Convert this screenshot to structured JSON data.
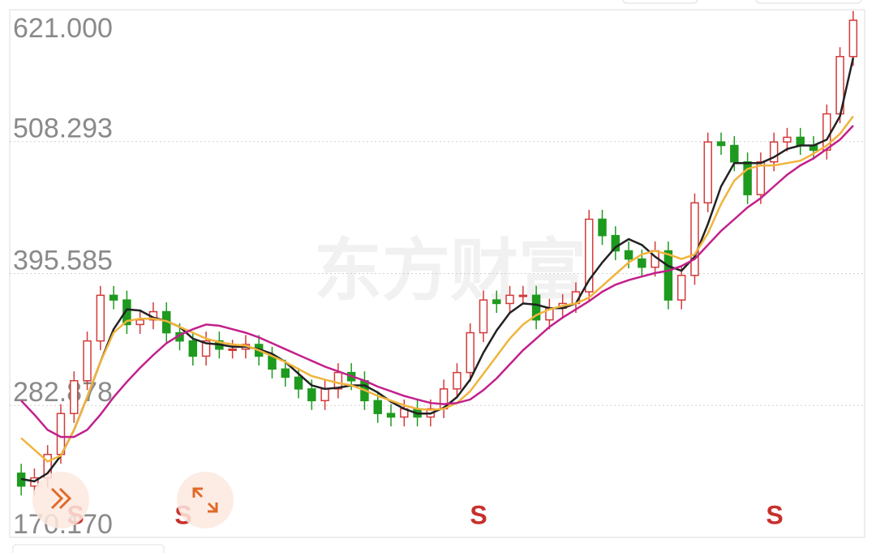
{
  "chart_data": {
    "type": "candlestick",
    "watermark": "东方财富",
    "ylim": [
      170.17,
      621
    ],
    "yticks": [
      {
        "value": 170.17,
        "label": "170.170"
      },
      282.878,
      395.585,
      508.293,
      {
        "value": 621,
        "label": "621.000"
      }
    ],
    "grid": true,
    "up_color": "#d33a3a",
    "down_color": "#1e9a1e",
    "open": [
      225,
      214,
      221,
      241,
      276,
      304,
      338,
      377,
      373,
      352,
      356,
      363,
      345,
      338,
      325,
      338,
      331,
      331,
      335,
      325,
      314,
      307,
      297,
      287,
      297,
      311,
      304,
      287,
      276,
      273,
      280,
      273,
      280,
      297,
      311,
      345,
      373,
      370,
      377,
      377,
      356,
      366,
      370,
      380,
      442,
      428,
      415,
      408,
      401,
      415,
      373,
      394,
      456,
      508,
      505,
      491,
      463,
      491,
      508,
      512,
      505,
      501,
      532,
      581
    ],
    "high": [
      233,
      229,
      249,
      284,
      312,
      346,
      385,
      385,
      381,
      364,
      371,
      371,
      353,
      346,
      346,
      346,
      339,
      343,
      343,
      333,
      322,
      315,
      305,
      305,
      319,
      319,
      312,
      295,
      284,
      288,
      288,
      288,
      305,
      319,
      353,
      381,
      381,
      385,
      385,
      385,
      374,
      378,
      388,
      450,
      450,
      436,
      423,
      416,
      423,
      423,
      402,
      464,
      516,
      516,
      513,
      499,
      499,
      516,
      520,
      520,
      513,
      540,
      589,
      620
    ],
    "low": [
      206,
      206,
      213,
      233,
      268,
      296,
      330,
      365,
      344,
      344,
      348,
      337,
      330,
      317,
      317,
      323,
      323,
      323,
      317,
      306,
      299,
      289,
      279,
      279,
      289,
      296,
      279,
      268,
      265,
      265,
      265,
      265,
      272,
      289,
      303,
      337,
      362,
      362,
      369,
      348,
      348,
      358,
      362,
      372,
      420,
      407,
      400,
      393,
      393,
      365,
      365,
      386,
      448,
      497,
      483,
      455,
      455,
      483,
      500,
      497,
      493,
      493,
      524,
      573
    ],
    "close": [
      214,
      221,
      241,
      276,
      304,
      338,
      377,
      373,
      352,
      356,
      363,
      345,
      338,
      325,
      338,
      331,
      331,
      335,
      325,
      314,
      307,
      297,
      287,
      297,
      311,
      304,
      287,
      276,
      273,
      280,
      273,
      280,
      297,
      311,
      345,
      373,
      370,
      377,
      377,
      356,
      366,
      370,
      380,
      442,
      428,
      415,
      408,
      401,
      415,
      373,
      394,
      456,
      508,
      505,
      491,
      463,
      491,
      508,
      512,
      505,
      501,
      532,
      581,
      612
    ],
    "series": [
      {
        "color": "#222222",
        "values": [
          220,
          218,
          225,
          240,
          262,
          290,
          320,
          348,
          365,
          364,
          358,
          355,
          350,
          340,
          336,
          335,
          333,
          333,
          331,
          327,
          320,
          310,
          300,
          297,
          298,
          300,
          300,
          294,
          286,
          280,
          276,
          276,
          281,
          290,
          305,
          328,
          347,
          362,
          370,
          369,
          366,
          366,
          370,
          390,
          405,
          418,
          425,
          420,
          410,
          402,
          398,
          410,
          438,
          470,
          490,
          490,
          490,
          495,
          502,
          505,
          505,
          510,
          530,
          580
        ]
      },
      {
        "color": "#f0b43c",
        "values": [
          255,
          245,
          235,
          240,
          262,
          290,
          320,
          345,
          355,
          357,
          357,
          355,
          350,
          345,
          340,
          337,
          335,
          334,
          330,
          325,
          320,
          314,
          308,
          305,
          302,
          300,
          296,
          291,
          287,
          283,
          280,
          279,
          280,
          285,
          295,
          310,
          325,
          340,
          352,
          360,
          365,
          368,
          370,
          375,
          385,
          395,
          405,
          412,
          415,
          412,
          408,
          412,
          430,
          455,
          475,
          485,
          488,
          488,
          490,
          492,
          498,
          505,
          515,
          530
        ]
      },
      {
        "color": "#c2208c",
        "values": [
          287,
          275,
          262,
          256,
          256,
          262,
          275,
          290,
          303,
          315,
          326,
          336,
          343,
          348,
          352,
          351,
          348,
          345,
          341,
          336,
          331,
          326,
          321,
          316,
          312,
          308,
          304,
          299,
          295,
          291,
          288,
          285,
          284,
          285,
          288,
          296,
          306,
          318,
          330,
          340,
          350,
          358,
          365,
          372,
          380,
          386,
          390,
          393,
          396,
          398,
          402,
          408,
          420,
          432,
          442,
          452,
          460,
          470,
          480,
          488,
          494,
          502,
          510,
          522
        ]
      }
    ],
    "signal_labels": [
      "S",
      "S",
      "S",
      "S"
    ]
  }
}
